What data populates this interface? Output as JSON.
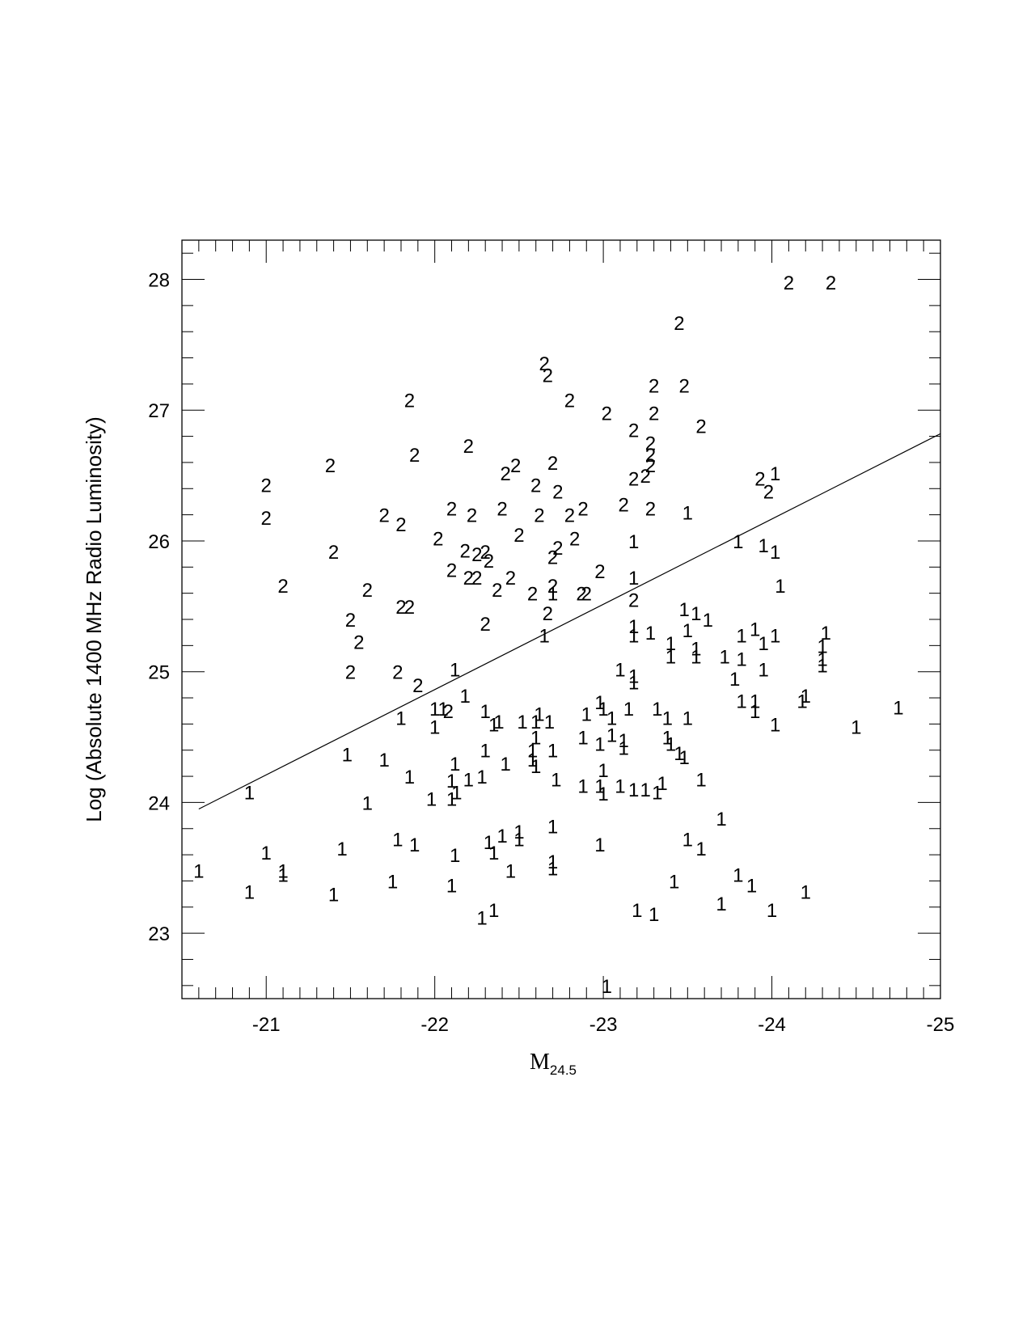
{
  "chart_data": {
    "type": "scatter",
    "title": "",
    "xlabel": "M",
    "xlabel_sub": "24.5",
    "ylabel": "Log (Absolute 1400 MHz Radio Luminosity)",
    "xlim": [
      -20.5,
      -25
    ],
    "ylim": [
      22.5,
      28.3
    ],
    "x_ticks": [
      -21,
      -22,
      -23,
      -24,
      -25
    ],
    "x_tick_labels": [
      "-21",
      "-22",
      "-23",
      "-24",
      "-25"
    ],
    "y_ticks": [
      23,
      24,
      25,
      26,
      27,
      28
    ],
    "y_tick_labels": [
      "23",
      "24",
      "25",
      "26",
      "27",
      "28"
    ],
    "grid": false,
    "line": {
      "x": [
        -20.6,
        -25.0
      ],
      "y": [
        23.95,
        26.82
      ]
    },
    "series": [
      {
        "marker": "2",
        "points": [
          [
            -24.1,
            27.98
          ],
          [
            -24.35,
            27.98
          ],
          [
            -23.45,
            27.67
          ],
          [
            -22.65,
            27.36
          ],
          [
            -22.67,
            27.27
          ],
          [
            -21.85,
            27.08
          ],
          [
            -22.8,
            27.08
          ],
          [
            -23.3,
            27.19
          ],
          [
            -23.48,
            27.19
          ],
          [
            -23.02,
            26.98
          ],
          [
            -23.3,
            26.98
          ],
          [
            -23.58,
            26.88
          ],
          [
            -23.18,
            26.85
          ],
          [
            -23.28,
            26.75
          ],
          [
            -23.28,
            26.66
          ],
          [
            -23.28,
            26.58
          ],
          [
            -23.25,
            26.5
          ],
          [
            -23.18,
            26.48
          ],
          [
            -22.2,
            26.73
          ],
          [
            -21.88,
            26.66
          ],
          [
            -21.38,
            26.58
          ],
          [
            -21.0,
            26.43
          ],
          [
            -22.48,
            26.58
          ],
          [
            -22.42,
            26.52
          ],
          [
            -22.6,
            26.43
          ],
          [
            -22.7,
            26.6
          ],
          [
            -22.73,
            26.38
          ],
          [
            -23.93,
            26.48
          ],
          [
            -23.98,
            26.38
          ],
          [
            -21.0,
            26.18
          ],
          [
            -21.7,
            26.2
          ],
          [
            -21.8,
            26.13
          ],
          [
            -22.1,
            26.25
          ],
          [
            -22.22,
            26.2
          ],
          [
            -22.4,
            26.25
          ],
          [
            -22.62,
            26.2
          ],
          [
            -22.8,
            26.2
          ],
          [
            -22.88,
            26.25
          ],
          [
            -23.12,
            26.28
          ],
          [
            -23.28,
            26.25
          ],
          [
            -22.5,
            26.05
          ],
          [
            -22.02,
            26.02
          ],
          [
            -21.4,
            25.92
          ],
          [
            -22.18,
            25.93
          ],
          [
            -22.25,
            25.9
          ],
          [
            -22.3,
            25.92
          ],
          [
            -22.32,
            25.85
          ],
          [
            -22.73,
            25.95
          ],
          [
            -22.7,
            25.88
          ],
          [
            -22.83,
            26.02
          ],
          [
            -22.1,
            25.78
          ],
          [
            -22.2,
            25.72
          ],
          [
            -22.25,
            25.72
          ],
          [
            -22.45,
            25.72
          ],
          [
            -21.1,
            25.66
          ],
          [
            -21.6,
            25.63
          ],
          [
            -22.37,
            25.63
          ],
          [
            -22.58,
            25.6
          ],
          [
            -22.7,
            25.66
          ],
          [
            -22.87,
            25.6
          ],
          [
            -22.9,
            25.6
          ],
          [
            -22.98,
            25.77
          ],
          [
            -23.18,
            25.55
          ],
          [
            -21.8,
            25.5
          ],
          [
            -21.85,
            25.5
          ],
          [
            -21.5,
            25.4
          ],
          [
            -21.55,
            25.23
          ],
          [
            -22.3,
            25.37
          ],
          [
            -22.67,
            25.45
          ],
          [
            -21.5,
            25.0
          ],
          [
            -21.78,
            25.0
          ],
          [
            -21.9,
            24.9
          ],
          [
            -22.08,
            24.7
          ]
        ]
      },
      {
        "marker": "1",
        "points": [
          [
            -24.02,
            26.52
          ],
          [
            -23.5,
            26.22
          ],
          [
            -23.18,
            26.0
          ],
          [
            -23.8,
            26.0
          ],
          [
            -23.95,
            25.97
          ],
          [
            -24.02,
            25.92
          ],
          [
            -23.18,
            25.72
          ],
          [
            -22.7,
            25.6
          ],
          [
            -24.05,
            25.66
          ],
          [
            -23.48,
            25.48
          ],
          [
            -23.55,
            25.45
          ],
          [
            -23.62,
            25.4
          ],
          [
            -23.18,
            25.35
          ],
          [
            -23.28,
            25.3
          ],
          [
            -23.5,
            25.32
          ],
          [
            -23.18,
            25.28
          ],
          [
            -23.4,
            25.22
          ],
          [
            -23.55,
            25.18
          ],
          [
            -23.82,
            25.28
          ],
          [
            -23.9,
            25.33
          ],
          [
            -24.02,
            25.28
          ],
          [
            -23.95,
            25.22
          ],
          [
            -24.32,
            25.3
          ],
          [
            -24.3,
            25.2
          ],
          [
            -22.65,
            25.28
          ],
          [
            -23.4,
            25.12
          ],
          [
            -23.55,
            25.12
          ],
          [
            -23.72,
            25.12
          ],
          [
            -23.82,
            25.1
          ],
          [
            -24.3,
            25.1
          ],
          [
            -24.3,
            25.05
          ],
          [
            -23.1,
            25.02
          ],
          [
            -23.18,
            24.97
          ],
          [
            -23.18,
            24.92
          ],
          [
            -23.78,
            24.95
          ],
          [
            -23.95,
            25.02
          ],
          [
            -22.12,
            25.02
          ],
          [
            -22.18,
            24.82
          ],
          [
            -24.18,
            24.78
          ],
          [
            -24.2,
            24.82
          ],
          [
            -23.82,
            24.78
          ],
          [
            -23.9,
            24.78
          ],
          [
            -23.9,
            24.7
          ],
          [
            -24.75,
            24.73
          ],
          [
            -22.0,
            24.72
          ],
          [
            -22.05,
            24.72
          ],
          [
            -22.3,
            24.7
          ],
          [
            -22.98,
            24.77
          ],
          [
            -23.0,
            24.72
          ],
          [
            -23.15,
            24.72
          ],
          [
            -23.32,
            24.72
          ],
          [
            -23.38,
            24.65
          ],
          [
            -23.5,
            24.65
          ],
          [
            -21.8,
            24.65
          ],
          [
            -22.35,
            24.6
          ],
          [
            -22.38,
            24.62
          ],
          [
            -22.52,
            24.62
          ],
          [
            -22.6,
            24.62
          ],
          [
            -22.62,
            24.68
          ],
          [
            -22.68,
            24.62
          ],
          [
            -22.9,
            24.68
          ],
          [
            -23.05,
            24.65
          ],
          [
            -24.02,
            24.6
          ],
          [
            -24.5,
            24.58
          ],
          [
            -22.0,
            24.58
          ],
          [
            -23.05,
            24.52
          ],
          [
            -23.12,
            24.48
          ],
          [
            -23.38,
            24.5
          ],
          [
            -23.4,
            24.45
          ],
          [
            -22.6,
            24.5
          ],
          [
            -22.88,
            24.5
          ],
          [
            -22.98,
            24.45
          ],
          [
            -23.12,
            24.42
          ],
          [
            -22.3,
            24.4
          ],
          [
            -22.58,
            24.4
          ],
          [
            -22.7,
            24.4
          ],
          [
            -23.45,
            24.38
          ],
          [
            -23.48,
            24.35
          ],
          [
            -21.48,
            24.37
          ],
          [
            -21.7,
            24.33
          ],
          [
            -22.42,
            24.3
          ],
          [
            -22.58,
            24.33
          ],
          [
            -22.6,
            24.28
          ],
          [
            -22.12,
            24.3
          ],
          [
            -23.0,
            24.25
          ],
          [
            -21.85,
            24.2
          ],
          [
            -22.1,
            24.17
          ],
          [
            -22.2,
            24.18
          ],
          [
            -22.28,
            24.2
          ],
          [
            -22.72,
            24.18
          ],
          [
            -22.88,
            24.13
          ],
          [
            -22.98,
            24.13
          ],
          [
            -23.0,
            24.07
          ],
          [
            -23.1,
            24.13
          ],
          [
            -23.18,
            24.1
          ],
          [
            -23.25,
            24.1
          ],
          [
            -23.32,
            24.08
          ],
          [
            -23.35,
            24.15
          ],
          [
            -23.58,
            24.18
          ],
          [
            -22.13,
            24.08
          ],
          [
            -20.9,
            24.08
          ],
          [
            -21.98,
            24.03
          ],
          [
            -22.1,
            24.03
          ],
          [
            -21.6,
            24.0
          ],
          [
            -23.7,
            23.88
          ],
          [
            -22.7,
            23.82
          ],
          [
            -22.5,
            23.78
          ],
          [
            -22.4,
            23.75
          ],
          [
            -22.32,
            23.7
          ],
          [
            -22.5,
            23.72
          ],
          [
            -21.78,
            23.72
          ],
          [
            -21.88,
            23.68
          ],
          [
            -22.98,
            23.68
          ],
          [
            -23.5,
            23.72
          ],
          [
            -21.0,
            23.62
          ],
          [
            -21.45,
            23.65
          ],
          [
            -22.12,
            23.6
          ],
          [
            -22.35,
            23.62
          ],
          [
            -23.58,
            23.65
          ],
          [
            -22.7,
            23.55
          ],
          [
            -22.7,
            23.5
          ],
          [
            -22.45,
            23.48
          ],
          [
            -20.6,
            23.48
          ],
          [
            -21.1,
            23.48
          ],
          [
            -21.1,
            23.45
          ],
          [
            -23.8,
            23.45
          ],
          [
            -21.75,
            23.4
          ],
          [
            -22.1,
            23.37
          ],
          [
            -23.42,
            23.4
          ],
          [
            -23.88,
            23.37
          ],
          [
            -20.9,
            23.32
          ],
          [
            -21.4,
            23.3
          ],
          [
            -24.2,
            23.32
          ],
          [
            -23.7,
            23.23
          ],
          [
            -23.2,
            23.18
          ],
          [
            -23.3,
            23.15
          ],
          [
            -24.0,
            23.18
          ],
          [
            -22.35,
            23.18
          ],
          [
            -22.28,
            23.12
          ],
          [
            -23.02,
            22.6
          ]
        ]
      }
    ]
  }
}
